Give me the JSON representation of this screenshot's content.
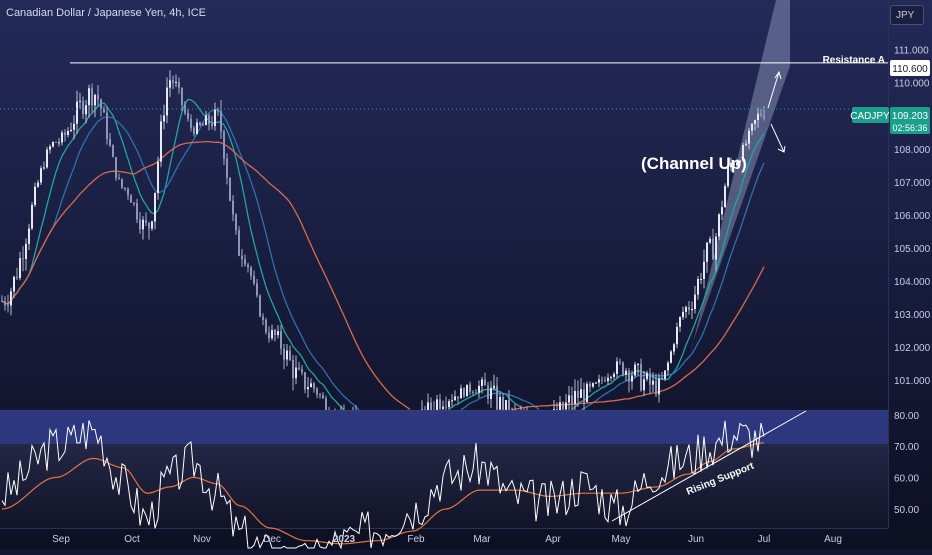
{
  "header": {
    "symbol_title": "Canadian Dollar / Japanese Yen, 4h, ICE",
    "currency_button": "JPY"
  },
  "annotations": {
    "resistance_label": "Resistance A",
    "channel_label": "(Channel Up)",
    "support_label": "Rising Support"
  },
  "price_badges": {
    "resistance_value": "110.600",
    "symbol": "CADJPY",
    "last_price": "109.203",
    "countdown": "02:56:36"
  },
  "colors": {
    "background_top": "#232a58",
    "background_bottom": "#0d0f22",
    "candle_up": "#d9dbe8",
    "candle_down": "#c2c6dc",
    "ma_fast": "#22a5a0",
    "ma_mid": "#2f6fb2",
    "ma_slow": "#d96a4a",
    "rsi_line": "#ffffff",
    "rsi_ma": "#e2743e",
    "badge_green": "#1b9f8c",
    "channel_fill": "#9aa3c7"
  },
  "chart_data": [
    {
      "type": "line",
      "name": "CADJPY price",
      "yticks": [
        101.0,
        102.0,
        103.0,
        104.0,
        105.0,
        106.0,
        107.0,
        108.0,
        109.0,
        110.0,
        111.0
      ],
      "ytick_labels": [
        "101.000",
        "102.000",
        "103.000",
        "104.000",
        "105.000",
        "106.000",
        "107.000",
        "108.000",
        "109.000",
        "110.000",
        "111.000"
      ],
      "ylim": [
        100.1,
        112.5
      ],
      "x_labels": [
        "Sep",
        "Oct",
        "Nov",
        "Dec",
        "2023",
        "Feb",
        "Mar",
        "Apr",
        "May",
        "Jun",
        "Jul",
        "Aug"
      ],
      "x": [
        "Sep",
        "Sep",
        "Sep",
        "Oct",
        "Oct",
        "Oct",
        "Nov",
        "Nov",
        "Nov",
        "Dec",
        "Dec",
        "2023",
        "2023",
        "Feb",
        "Feb",
        "Mar",
        "Mar",
        "Apr",
        "Apr",
        "May",
        "May",
        "Jun",
        "Jun",
        "Jun",
        "Jul"
      ],
      "close": [
        103.4,
        108.2,
        109.7,
        106.8,
        105.6,
        110.1,
        108.6,
        108.9,
        104.9,
        102.4,
        100.9,
        99.8,
        99.2,
        99.6,
        100.5,
        100.8,
        99.9,
        99.9,
        100.6,
        101.4,
        100.8,
        103.2,
        104.9,
        107.6,
        109.2
      ],
      "resistance": 110.6,
      "last_price": 109.203,
      "channel": {
        "type": "rising channel",
        "label": "(Channel Up)"
      }
    },
    {
      "type": "line",
      "name": "RSI",
      "yticks": [
        50,
        60,
        70,
        80
      ],
      "ytick_labels": [
        "50.00",
        "60.00",
        "70.00",
        "80.00"
      ],
      "ylim": [
        44,
        81
      ],
      "x": [
        "Sep",
        "Sep",
        "Sep",
        "Oct",
        "Oct",
        "Oct",
        "Nov",
        "Nov",
        "Nov",
        "Dec",
        "Dec",
        "2023",
        "2023",
        "Feb",
        "Feb",
        "Mar",
        "Mar",
        "Apr",
        "Apr",
        "May",
        "May",
        "Jun",
        "Jun",
        "Jun",
        "Jul"
      ],
      "rsi": [
        55,
        70,
        75,
        58,
        47,
        60,
        65,
        55,
        42,
        36,
        33,
        40,
        44,
        50,
        60,
        64,
        54,
        52,
        58,
        50,
        62,
        66,
        70,
        74,
        72
      ],
      "rsi_ma": [
        50,
        60,
        66,
        63,
        55,
        57,
        60,
        58,
        51,
        44,
        40,
        39,
        40,
        43,
        50,
        56,
        56,
        54,
        55,
        55,
        57,
        61,
        65,
        69,
        71
      ],
      "overbought_band": [
        70,
        80
      ],
      "support_label": "Rising Support"
    }
  ]
}
